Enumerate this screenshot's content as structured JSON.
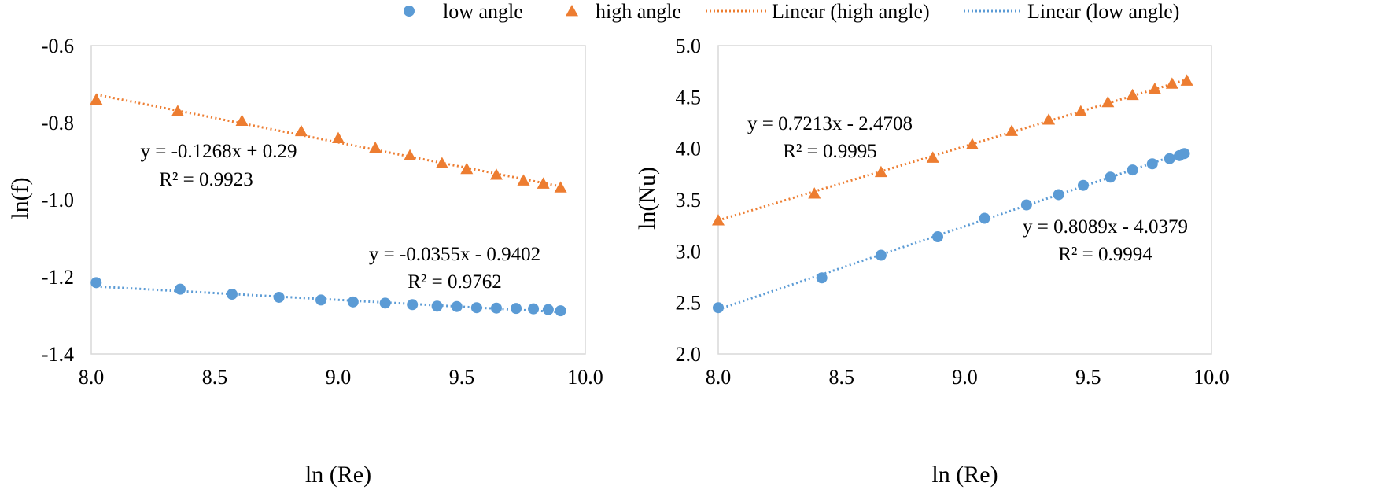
{
  "legend": {
    "items": [
      {
        "label": "low angle",
        "marker": "circle",
        "color": "#5B9BD5"
      },
      {
        "label": "high angle",
        "marker": "triangle",
        "color": "#ED7D31"
      },
      {
        "label": "Linear (high angle)",
        "marker": "dotted-line",
        "color": "#ED7D31"
      },
      {
        "label": "Linear (low angle)",
        "marker": "dotted-line",
        "color": "#5B9BD5"
      }
    ]
  },
  "chart_data": [
    {
      "type": "scatter",
      "xlabel": "ln (Re)",
      "ylabel": "ln(f)",
      "xlim": [
        8.0,
        10.0
      ],
      "ylim": [
        -1.4,
        -0.6
      ],
      "xticks": [
        "8.0",
        "8.5",
        "9.0",
        "9.5",
        "10.0"
      ],
      "yticks": [
        "-0.6",
        "-0.8",
        "-1.0",
        "-1.2",
        "-1.4"
      ],
      "series": [
        {
          "name": "high angle",
          "marker": "triangle",
          "color": "#ED7D31",
          "x": [
            8.02,
            8.35,
            8.61,
            8.85,
            9.0,
            9.15,
            9.29,
            9.42,
            9.52,
            9.64,
            9.75,
            9.83,
            9.9
          ],
          "y": [
            -0.74,
            -0.77,
            -0.795,
            -0.822,
            -0.84,
            -0.865,
            -0.885,
            -0.905,
            -0.92,
            -0.935,
            -0.95,
            -0.958,
            -0.968
          ],
          "trendline": {
            "slope": -0.1268,
            "intercept": 0.29,
            "equation": "y = -0.1268x + 0.29",
            "r2": "R² = 0.9923"
          }
        },
        {
          "name": "low angle",
          "marker": "circle",
          "color": "#5B9BD5",
          "x": [
            8.02,
            8.36,
            8.57,
            8.76,
            8.93,
            9.06,
            9.19,
            9.3,
            9.4,
            9.48,
            9.56,
            9.64,
            9.72,
            9.79,
            9.85,
            9.9
          ],
          "y": [
            -1.215,
            -1.232,
            -1.245,
            -1.253,
            -1.26,
            -1.265,
            -1.268,
            -1.272,
            -1.276,
            -1.277,
            -1.28,
            -1.281,
            -1.282,
            -1.283,
            -1.285,
            -1.288
          ],
          "trendline": {
            "slope": -0.0355,
            "intercept": -0.9402,
            "equation": "y = -0.0355x - 0.9402",
            "r2": "R² = 0.9762"
          }
        }
      ]
    },
    {
      "type": "scatter",
      "xlabel": "ln (Re)",
      "ylabel": "ln(Nu)",
      "xlim": [
        8.0,
        10.0
      ],
      "ylim": [
        2.0,
        5.0
      ],
      "xticks": [
        "8.0",
        "8.5",
        "9.0",
        "9.5",
        "10.0"
      ],
      "yticks": [
        "5.0",
        "4.5",
        "4.0",
        "3.5",
        "3.0",
        "2.5",
        "2.0"
      ],
      "series": [
        {
          "name": "high angle",
          "marker": "triangle",
          "color": "#ED7D31",
          "x": [
            8.0,
            8.39,
            8.66,
            8.87,
            9.03,
            9.19,
            9.34,
            9.47,
            9.58,
            9.68,
            9.77,
            9.84,
            9.9
          ],
          "y": [
            3.3,
            3.56,
            3.77,
            3.91,
            4.04,
            4.17,
            4.28,
            4.36,
            4.45,
            4.52,
            4.58,
            4.63,
            4.66
          ],
          "trendline": {
            "slope": 0.7213,
            "intercept": -2.4708,
            "equation": "y = 0.7213x - 2.4708",
            "r2": "R² = 0.9995"
          }
        },
        {
          "name": "low angle",
          "marker": "circle",
          "color": "#5B9BD5",
          "x": [
            8.0,
            8.42,
            8.66,
            8.89,
            9.08,
            9.25,
            9.38,
            9.48,
            9.59,
            9.68,
            9.76,
            9.83,
            9.87,
            9.89
          ],
          "y": [
            2.45,
            2.74,
            2.96,
            3.14,
            3.32,
            3.45,
            3.55,
            3.64,
            3.72,
            3.79,
            3.85,
            3.9,
            3.93,
            3.95
          ],
          "trendline": {
            "slope": 0.8089,
            "intercept": -4.0379,
            "equation": "y = 0.8089x - 4.0379",
            "r2": "R² = 0.9994"
          }
        }
      ]
    }
  ]
}
